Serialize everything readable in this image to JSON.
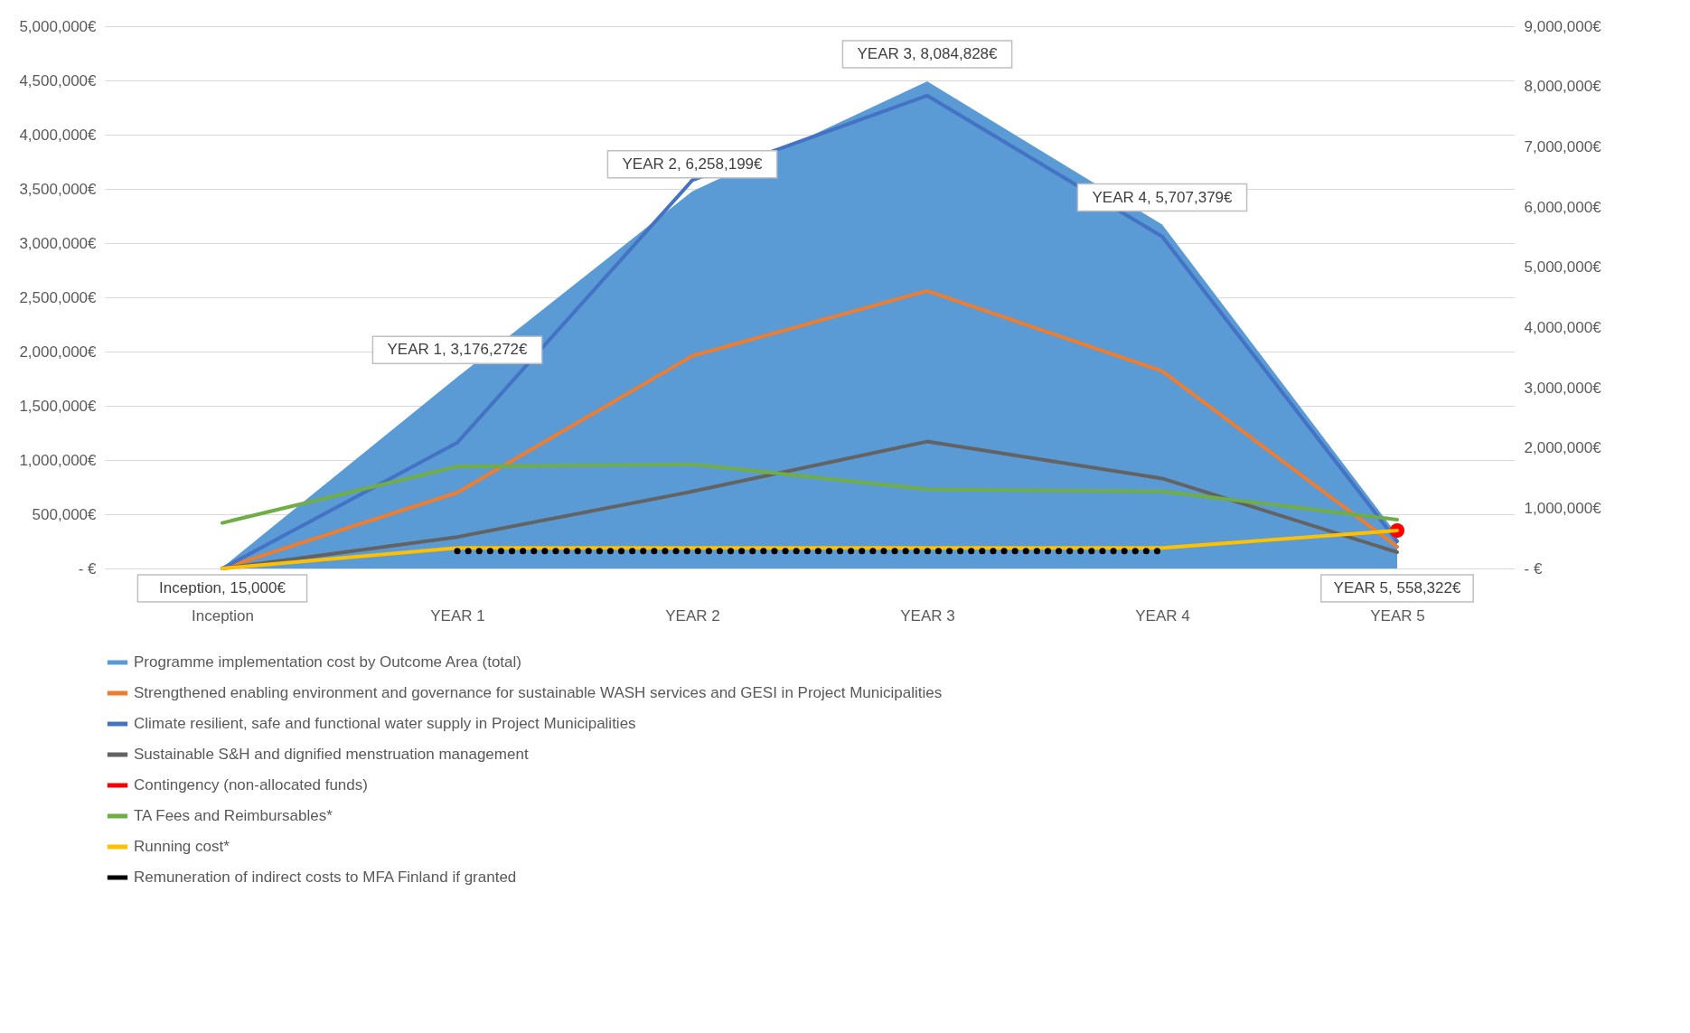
{
  "chart_data": {
    "type": "line",
    "categories": [
      "Inception",
      "YEAR 1",
      "YEAR 2",
      "YEAR 3",
      "YEAR 4",
      "YEAR 5"
    ],
    "ylim": [
      0,
      5000000
    ],
    "yticks": [
      {
        "value": 0,
        "label": "-  €"
      },
      {
        "value": 500000,
        "label": "500,000€"
      },
      {
        "value": 1000000,
        "label": "1,000,000€"
      },
      {
        "value": 1500000,
        "label": "1,500,000€"
      },
      {
        "value": 2000000,
        "label": "2,000,000€"
      },
      {
        "value": 2500000,
        "label": "2,500,000€"
      },
      {
        "value": 3000000,
        "label": "3,000,000€"
      },
      {
        "value": 3500000,
        "label": "3,500,000€"
      },
      {
        "value": 4000000,
        "label": "4,000,000€"
      },
      {
        "value": 4500000,
        "label": "4,500,000€"
      },
      {
        "value": 5000000,
        "label": "5,000,000€"
      }
    ],
    "y2lim": [
      0,
      9000000
    ],
    "y2ticks": [
      {
        "value": 0,
        "label": "-  €"
      },
      {
        "value": 1000000,
        "label": "1,000,000€"
      },
      {
        "value": 2000000,
        "label": "2,000,000€"
      },
      {
        "value": 3000000,
        "label": "3,000,000€"
      },
      {
        "value": 4000000,
        "label": "4,000,000€"
      },
      {
        "value": 5000000,
        "label": "5,000,000€"
      },
      {
        "value": 6000000,
        "label": "6,000,000€"
      },
      {
        "value": 7000000,
        "label": "7,000,000€"
      },
      {
        "value": 8000000,
        "label": "8,000,000€"
      },
      {
        "value": 9000000,
        "label": "9,000,000€"
      }
    ],
    "grid": "y",
    "legend": "bottom",
    "series": [
      {
        "name": "Programme implementation cost by Outcome Area (total)",
        "type": "area",
        "axis": "y2",
        "color": "#5b9bd5",
        "values": [
          15000,
          3176272,
          6258199,
          8084828,
          5707379,
          558322
        ],
        "value_labels": [
          "Inception, 15,000€",
          "YEAR 1, 3,176,272€",
          "YEAR 2, 6,258,199€",
          "YEAR 3, 8,084,828€",
          "YEAR 4, 5,707,379€",
          "YEAR 5, 558,322€"
        ]
      },
      {
        "name": "Strengthened enabling environment and governance for sustainable WASH services and GESI in Project Municipalities",
        "color": "#ed7d31",
        "values": [
          0,
          700000,
          1960000,
          2560000,
          1820000,
          200000
        ]
      },
      {
        "name": "Climate resilient, safe and functional water supply in Project Municipalities",
        "color": "#4472c4",
        "values": [
          0,
          1160000,
          3580000,
          4360000,
          3060000,
          250000
        ]
      },
      {
        "name": "Sustainable S&H and dignified menstruation management",
        "color": "#636363",
        "values": [
          0,
          290000,
          710000,
          1170000,
          830000,
          150000
        ]
      },
      {
        "name": "Contingency (non-allocated funds)",
        "color": "#ff0000",
        "marker": "circle",
        "values": [
          null,
          null,
          null,
          null,
          null,
          350000
        ]
      },
      {
        "name": "TA Fees and Reimbursables*",
        "color": "#70ad47",
        "values": [
          420000,
          940000,
          960000,
          730000,
          710000,
          450000
        ]
      },
      {
        "name": "Running cost*",
        "color": "#ffc000",
        "values": [
          0,
          190000,
          190000,
          190000,
          190000,
          350000
        ]
      },
      {
        "name": "Remuneration of indirect costs to MFA Finland if granted",
        "color": "#000000",
        "line_style": "dotted",
        "values": [
          null,
          160000,
          160000,
          160000,
          160000,
          null
        ]
      }
    ]
  }
}
